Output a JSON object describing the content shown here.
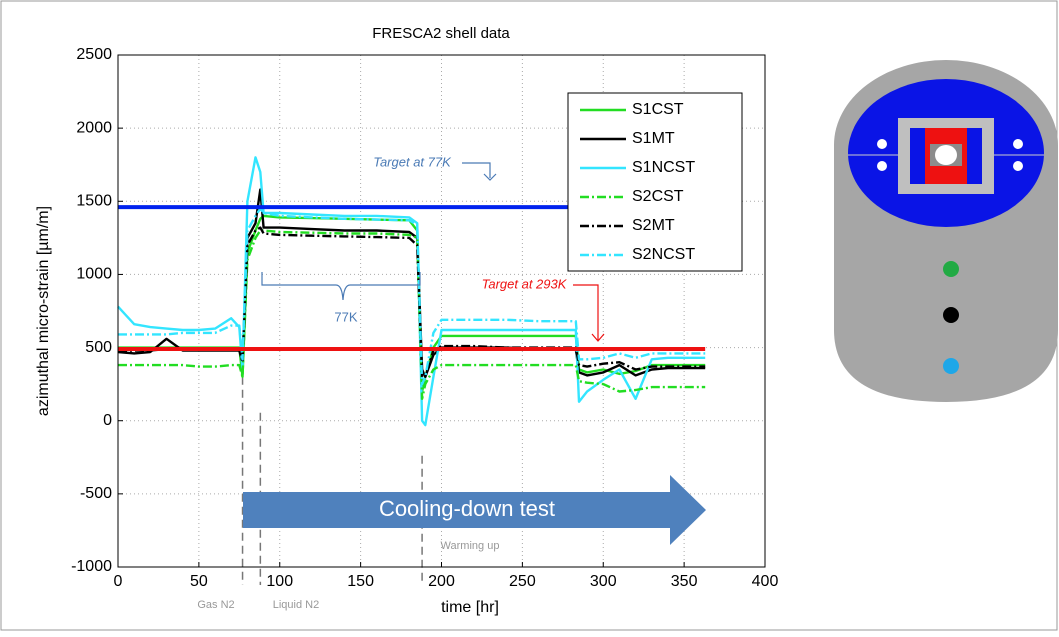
{
  "chart_data": {
    "type": "line",
    "title": "FRESCA2  shell data",
    "xlabel": "time   [hr]",
    "ylabel": "azimuthal micro-strain  [µm/m]",
    "xlim": [
      0,
      400
    ],
    "xticks": [
      0,
      50,
      100,
      150,
      200,
      250,
      300,
      350,
      400
    ],
    "ylim": [
      -1000,
      2500
    ],
    "yticks": [
      -1000,
      -500,
      0,
      500,
      1000,
      1500,
      2000,
      2500
    ],
    "grid": true,
    "legend": "upper right",
    "x": [
      0,
      10,
      20,
      30,
      40,
      50,
      60,
      70,
      75,
      77,
      80,
      85,
      88,
      90,
      100,
      120,
      140,
      160,
      180,
      185,
      188,
      190,
      195,
      200,
      220,
      240,
      260,
      280,
      283,
      285,
      290,
      300,
      310,
      320,
      330,
      340,
      350,
      363
    ],
    "series": [
      {
        "name": "S1CST",
        "color": "#22dd22",
        "style": "solid",
        "values": [
          500,
          500,
          500,
          500,
          500,
          500,
          500,
          500,
          500,
          300,
          1150,
          1300,
          1380,
          1400,
          1390,
          1385,
          1380,
          1375,
          1370,
          1300,
          200,
          300,
          500,
          580,
          580,
          580,
          580,
          580,
          580,
          350,
          330,
          350,
          320,
          340,
          380,
          380,
          380,
          380
        ]
      },
      {
        "name": "S1MT",
        "color": "#000000",
        "style": "solid",
        "values": [
          470,
          460,
          470,
          560,
          480,
          480,
          480,
          480,
          480,
          400,
          1250,
          1350,
          1580,
          1320,
          1320,
          1310,
          1300,
          1300,
          1290,
          1250,
          350,
          300,
          450,
          500,
          500,
          500,
          490,
          490,
          490,
          330,
          310,
          330,
          380,
          310,
          350,
          360,
          360,
          360
        ]
      },
      {
        "name": "S1NCST",
        "color": "#33e5ff",
        "style": "solid",
        "values": [
          780,
          660,
          640,
          630,
          620,
          620,
          630,
          700,
          640,
          350,
          1500,
          1800,
          1700,
          1420,
          1420,
          1410,
          1400,
          1400,
          1390,
          1350,
          0,
          -30,
          300,
          620,
          620,
          620,
          620,
          620,
          620,
          130,
          200,
          280,
          350,
          150,
          420,
          430,
          430,
          430
        ]
      },
      {
        "name": "S2CST",
        "color": "#22dd22",
        "style": "dash-dot",
        "values": [
          380,
          380,
          380,
          380,
          380,
          370,
          370,
          380,
          380,
          300,
          1100,
          1250,
          1300,
          1300,
          1290,
          1285,
          1280,
          1280,
          1270,
          1250,
          150,
          250,
          350,
          380,
          380,
          380,
          380,
          380,
          380,
          270,
          260,
          250,
          200,
          210,
          230,
          230,
          230,
          230
        ]
      },
      {
        "name": "S2MT",
        "color": "#000000",
        "style": "dash-dot",
        "values": [
          480,
          480,
          480,
          490,
          490,
          490,
          490,
          490,
          490,
          400,
          1200,
          1300,
          1320,
          1280,
          1270,
          1265,
          1260,
          1255,
          1250,
          1200,
          300,
          300,
          480,
          510,
          510,
          500,
          500,
          500,
          500,
          380,
          370,
          390,
          400,
          350,
          370,
          370,
          370,
          370
        ]
      },
      {
        "name": "S2NCST",
        "color": "#33e5ff",
        "style": "dash-dot",
        "values": [
          590,
          590,
          590,
          590,
          600,
          600,
          600,
          650,
          650,
          420,
          1300,
          1400,
          1450,
          1420,
          1400,
          1390,
          1380,
          1375,
          1370,
          1340,
          250,
          300,
          600,
          690,
          690,
          690,
          680,
          680,
          680,
          420,
          420,
          430,
          460,
          430,
          460,
          460,
          460,
          460
        ]
      }
    ],
    "reference_lines": [
      {
        "label": "Target at 77K",
        "value": 1460,
        "color": "#0022ee"
      },
      {
        "label": "Target at 293K",
        "value": 490,
        "color": "#ee1111"
      }
    ],
    "event_lines": [
      {
        "x": 77,
        "label": "Gas N2"
      },
      {
        "x": 88,
        "label": "Liquid N2"
      },
      {
        "x": 188,
        "label": "Warming up"
      }
    ],
    "bracket_label": "77K",
    "arrow_label": "Cooling-down test"
  }
}
